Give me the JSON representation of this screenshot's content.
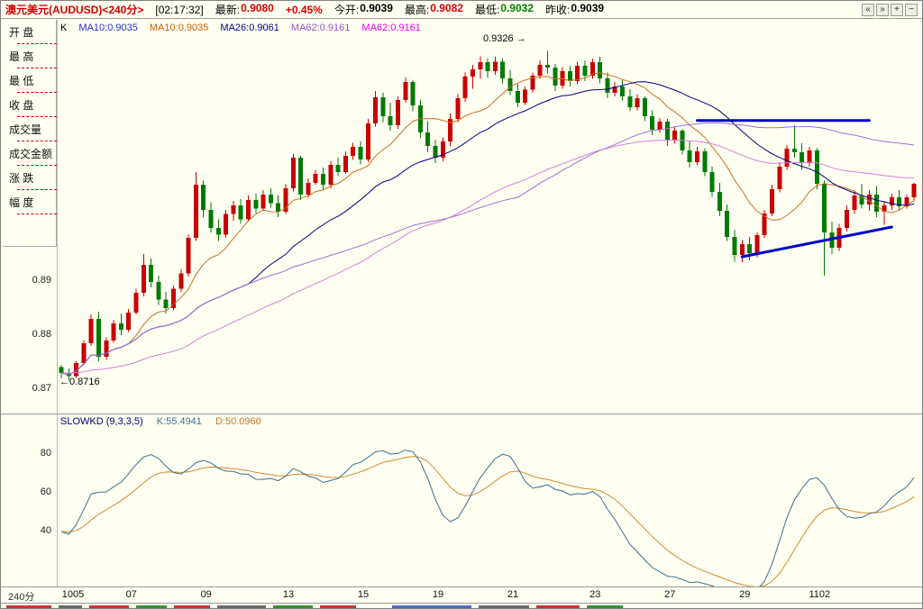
{
  "top_bar": {
    "title": "澳元美元(AUDUSD)<240分>",
    "title_color": "#D40000",
    "time": "[02:17:32]",
    "fields": [
      {
        "label": "最新:",
        "value": "0.9080",
        "color": "#D40000"
      },
      {
        "label": "",
        "value": "+0.45%",
        "color": "#D40000"
      },
      {
        "label": "今开:",
        "value": "0.9039",
        "color": "#000000"
      },
      {
        "label": "最高:",
        "value": "0.9082",
        "color": "#D40000"
      },
      {
        "label": "最低:",
        "value": "0.9032",
        "color": "#008000"
      },
      {
        "label": "昨收:",
        "value": "0.9039",
        "color": "#000000"
      }
    ],
    "icons": [
      "«",
      "»",
      "+",
      "−"
    ]
  },
  "sidebar": {
    "fields": [
      "开 盘",
      "最 高",
      "最 低",
      "收 盘",
      "成交量",
      "成交金额",
      "涨 跌",
      "幅 度"
    ]
  },
  "main_chart": {
    "indicator_labels": [
      {
        "text": "K",
        "color": "#000000"
      },
      {
        "text": "MA10:0.9035",
        "color": "#2233CC"
      },
      {
        "text": "MA10:0.9035",
        "color": "#C86400"
      },
      {
        "text": "MA26:0.9061",
        "color": "#000080"
      },
      {
        "text": "MA62:0.9161",
        "color": "#9955CC"
      },
      {
        "text": "MA62:0.9161",
        "color": "#EE00EE"
      }
    ],
    "y_ticks": [
      "0.89",
      "0.88",
      "0.87"
    ],
    "annotations": {
      "high": "0.9326 →",
      "low": "←0.8716"
    }
  },
  "kd_panel": {
    "labels": [
      {
        "text": "SLOWKD (9,3,3,5)",
        "color": "#000080"
      },
      {
        "text": "K:55.4941",
        "color": "#3A6E8F"
      },
      {
        "text": "D:50.0960",
        "color": "#C87420"
      }
    ],
    "y_ticks": [
      "80",
      "60",
      "40"
    ]
  },
  "x_axis": {
    "period": "240分"
  },
  "chart_data": {
    "type": "candlestick",
    "symbol": "AUDUSD",
    "period": "240min",
    "price_range": [
      0.8665,
      0.9345
    ],
    "high_annotation": 0.9326,
    "low_annotation": 0.8716,
    "latest": 0.908,
    "change_pct": 0.45,
    "open_today": 0.9039,
    "high_today": 0.9082,
    "low_today": 0.9032,
    "prev_close": 0.9039,
    "ma_periods": [
      10,
      26,
      62
    ],
    "ma_values": {
      "ma10": 0.9035,
      "ma26": 0.9061,
      "ma62": 0.9161
    },
    "colors": {
      "up": "#C80000",
      "down": "#007A00",
      "ma10": "#C87020",
      "ma26": "#000080",
      "ma62": "#9A6FD6",
      "ema62": "#D67FD6",
      "trendline": "#0000C8",
      "k_line": "#3A6E8F",
      "d_line": "#D6892B"
    },
    "kd": {
      "name": "SLOWKD",
      "params": [
        9,
        3,
        3,
        5
      ],
      "k_last": 55.4941,
      "d_last": 50.096,
      "scale": [
        0,
        100
      ],
      "ticks": [
        40,
        60,
        80
      ]
    },
    "trendlines": [
      {
        "b1": 85,
        "p1": 0.9197,
        "b2": 108,
        "p2": 0.9197
      },
      {
        "b1": 91,
        "p1": 0.8945,
        "b2": 111,
        "p2": 0.9
      }
    ],
    "date_ticks": [
      {
        "bar": 0,
        "label": "1005"
      },
      {
        "bar": 9,
        "label": "07"
      },
      {
        "bar": 19,
        "label": "09"
      },
      {
        "bar": 30,
        "label": "13"
      },
      {
        "bar": 40,
        "label": "15"
      },
      {
        "bar": 50,
        "label": "19"
      },
      {
        "bar": 60,
        "label": "21"
      },
      {
        "bar": 71,
        "label": "23"
      },
      {
        "bar": 81,
        "label": "27"
      },
      {
        "bar": 91,
        "label": "29"
      },
      {
        "bar": 101,
        "label": "1102"
      }
    ],
    "candles": [
      [
        0.8741,
        0.8745,
        0.872,
        0.873
      ],
      [
        0.873,
        0.8738,
        0.8716,
        0.8724
      ],
      [
        0.8724,
        0.8752,
        0.872,
        0.8748
      ],
      [
        0.8748,
        0.879,
        0.8744,
        0.8785
      ],
      [
        0.8785,
        0.8838,
        0.878,
        0.883
      ],
      [
        0.883,
        0.8843,
        0.8752,
        0.876
      ],
      [
        0.876,
        0.8796,
        0.8754,
        0.879
      ],
      [
        0.879,
        0.8828,
        0.8786,
        0.8822
      ],
      [
        0.8822,
        0.884,
        0.88,
        0.881
      ],
      [
        0.881,
        0.8848,
        0.8806,
        0.8842
      ],
      [
        0.8842,
        0.8886,
        0.8838,
        0.8878
      ],
      [
        0.8878,
        0.895,
        0.8872,
        0.893
      ],
      [
        0.893,
        0.8942,
        0.8888,
        0.8898
      ],
      [
        0.8898,
        0.891,
        0.8856,
        0.8866
      ],
      [
        0.8866,
        0.888,
        0.884,
        0.885
      ],
      [
        0.885,
        0.8892,
        0.8846,
        0.8886
      ],
      [
        0.8886,
        0.8922,
        0.888,
        0.8914
      ],
      [
        0.8914,
        0.8986,
        0.8908,
        0.898
      ],
      [
        0.898,
        0.9102,
        0.8974,
        0.9078
      ],
      [
        0.9078,
        0.9086,
        0.9018,
        0.9032
      ],
      [
        0.9032,
        0.9046,
        0.899,
        0.8998
      ],
      [
        0.8998,
        0.9014,
        0.8974,
        0.8986
      ],
      [
        0.8986,
        0.9032,
        0.898,
        0.9024
      ],
      [
        0.9024,
        0.9048,
        0.9012,
        0.904
      ],
      [
        0.904,
        0.9052,
        0.9006,
        0.9014
      ],
      [
        0.9014,
        0.9058,
        0.901,
        0.905
      ],
      [
        0.905,
        0.9062,
        0.9026,
        0.9034
      ],
      [
        0.9034,
        0.9068,
        0.903,
        0.906
      ],
      [
        0.906,
        0.9072,
        0.9036,
        0.9044
      ],
      [
        0.9044,
        0.9058,
        0.9018,
        0.9028
      ],
      [
        0.9028,
        0.908,
        0.9024,
        0.9072
      ],
      [
        0.9072,
        0.9135,
        0.9066,
        0.9128
      ],
      [
        0.9128,
        0.9132,
        0.905,
        0.906
      ],
      [
        0.906,
        0.909,
        0.9054,
        0.9082
      ],
      [
        0.9082,
        0.9106,
        0.9078,
        0.9098
      ],
      [
        0.9098,
        0.911,
        0.9068,
        0.9078
      ],
      [
        0.9078,
        0.9122,
        0.9072,
        0.9115
      ],
      [
        0.9115,
        0.9128,
        0.9094,
        0.9102
      ],
      [
        0.9102,
        0.914,
        0.9098,
        0.9132
      ],
      [
        0.9132,
        0.9156,
        0.9124,
        0.9148
      ],
      [
        0.9148,
        0.9158,
        0.9116,
        0.9125
      ],
      [
        0.9125,
        0.92,
        0.912,
        0.9192
      ],
      [
        0.9192,
        0.9252,
        0.9186,
        0.924
      ],
      [
        0.924,
        0.9248,
        0.9194,
        0.9205
      ],
      [
        0.9205,
        0.923,
        0.9178,
        0.9188
      ],
      [
        0.9188,
        0.9242,
        0.9182,
        0.9235
      ],
      [
        0.9235,
        0.9277,
        0.923,
        0.9268
      ],
      [
        0.9268,
        0.9272,
        0.9214,
        0.9225
      ],
      [
        0.9225,
        0.9236,
        0.9164,
        0.9175
      ],
      [
        0.9175,
        0.9196,
        0.9138,
        0.915
      ],
      [
        0.915,
        0.9162,
        0.9118,
        0.9128
      ],
      [
        0.9128,
        0.9166,
        0.9122,
        0.9158
      ],
      [
        0.9158,
        0.921,
        0.915,
        0.92
      ],
      [
        0.92,
        0.9246,
        0.9194,
        0.9238
      ],
      [
        0.9238,
        0.9286,
        0.9232,
        0.9278
      ],
      [
        0.9278,
        0.93,
        0.9256,
        0.9292
      ],
      [
        0.9292,
        0.9316,
        0.9274,
        0.9305
      ],
      [
        0.9305,
        0.9312,
        0.9276,
        0.9288
      ],
      [
        0.9288,
        0.9315,
        0.9282,
        0.9306
      ],
      [
        0.9306,
        0.9312,
        0.9266,
        0.9275
      ],
      [
        0.9275,
        0.929,
        0.9244,
        0.9252
      ],
      [
        0.9252,
        0.9265,
        0.9222,
        0.923
      ],
      [
        0.923,
        0.926,
        0.9226,
        0.9254
      ],
      [
        0.9254,
        0.9286,
        0.9248,
        0.928
      ],
      [
        0.928,
        0.9308,
        0.9274,
        0.93
      ],
      [
        0.93,
        0.9326,
        0.9284,
        0.9295
      ],
      [
        0.9295,
        0.9302,
        0.9252,
        0.9262
      ],
      [
        0.9262,
        0.9296,
        0.9256,
        0.9288
      ],
      [
        0.9288,
        0.9298,
        0.926,
        0.927
      ],
      [
        0.927,
        0.9306,
        0.9264,
        0.9298
      ],
      [
        0.9298,
        0.9308,
        0.927,
        0.928
      ],
      [
        0.928,
        0.9312,
        0.9274,
        0.9305
      ],
      [
        0.9305,
        0.9315,
        0.9266,
        0.9275
      ],
      [
        0.9275,
        0.9286,
        0.9238,
        0.9248
      ],
      [
        0.9248,
        0.9268,
        0.9242,
        0.926
      ],
      [
        0.926,
        0.9272,
        0.9234,
        0.9242
      ],
      [
        0.9242,
        0.9255,
        0.9214,
        0.9222
      ],
      [
        0.9222,
        0.9246,
        0.9216,
        0.9238
      ],
      [
        0.9238,
        0.9242,
        0.9196,
        0.9205
      ],
      [
        0.9205,
        0.9216,
        0.917,
        0.918
      ],
      [
        0.918,
        0.9202,
        0.9174,
        0.9195
      ],
      [
        0.9195,
        0.92,
        0.915,
        0.916
      ],
      [
        0.916,
        0.9186,
        0.9154,
        0.9178
      ],
      [
        0.9178,
        0.9182,
        0.9134,
        0.9142
      ],
      [
        0.9142,
        0.9158,
        0.911,
        0.912
      ],
      [
        0.912,
        0.9148,
        0.9114,
        0.914
      ],
      [
        0.914,
        0.9146,
        0.9094,
        0.9102
      ],
      [
        0.9102,
        0.9112,
        0.9056,
        0.9065
      ],
      [
        0.9065,
        0.9082,
        0.902,
        0.903
      ],
      [
        0.903,
        0.9042,
        0.8974,
        0.8982
      ],
      [
        0.8982,
        0.8995,
        0.8936,
        0.8948
      ],
      [
        0.8948,
        0.8976,
        0.8935,
        0.8968
      ],
      [
        0.8968,
        0.8982,
        0.8938,
        0.8952
      ],
      [
        0.8952,
        0.899,
        0.8944,
        0.8985
      ],
      [
        0.8985,
        0.9032,
        0.898,
        0.9025
      ],
      [
        0.9025,
        0.9078,
        0.902,
        0.907
      ],
      [
        0.907,
        0.912,
        0.9064,
        0.9112
      ],
      [
        0.9112,
        0.9152,
        0.9106,
        0.9145
      ],
      [
        0.9145,
        0.9188,
        0.9128,
        0.9138
      ],
      [
        0.9138,
        0.9155,
        0.9106,
        0.9118
      ],
      [
        0.9118,
        0.9148,
        0.9112,
        0.9142
      ],
      [
        0.9142,
        0.9146,
        0.907,
        0.908
      ],
      [
        0.908,
        0.9086,
        0.891,
        0.899
      ],
      [
        0.899,
        0.901,
        0.895,
        0.8962
      ],
      [
        0.8962,
        0.9006,
        0.8956,
        0.8998
      ],
      [
        0.8998,
        0.904,
        0.8992,
        0.9032
      ],
      [
        0.9032,
        0.9066,
        0.9024,
        0.9058
      ],
      [
        0.9058,
        0.908,
        0.9034,
        0.9042
      ],
      [
        0.9042,
        0.9068,
        0.903,
        0.906
      ],
      [
        0.906,
        0.9076,
        0.9018,
        0.9028
      ],
      [
        0.9028,
        0.9048,
        0.9004,
        0.904
      ],
      [
        0.904,
        0.9062,
        0.9032,
        0.9055
      ],
      [
        0.9055,
        0.9068,
        0.9032,
        0.9038
      ],
      [
        0.9038,
        0.906,
        0.9034,
        0.9055
      ],
      [
        0.9055,
        0.9082,
        0.9048,
        0.908
      ]
    ]
  }
}
